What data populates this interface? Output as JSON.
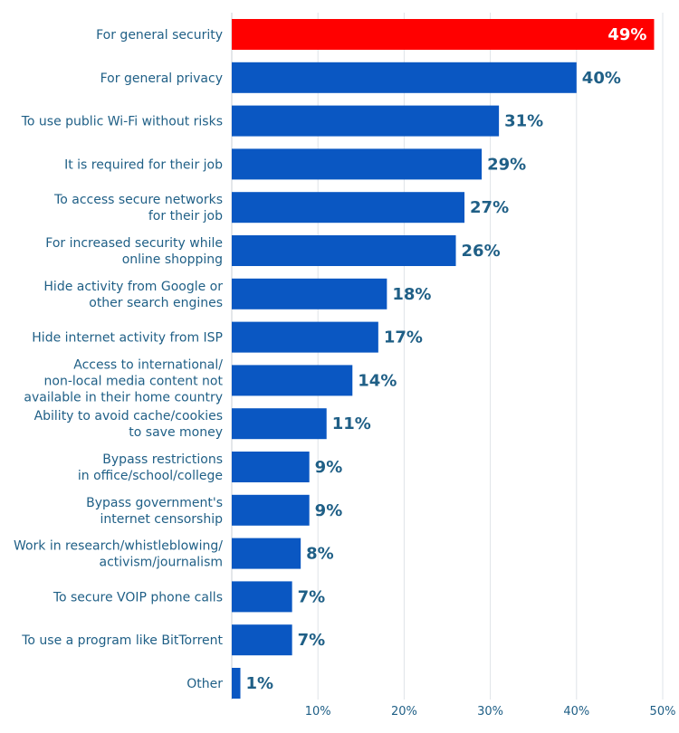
{
  "colors": {
    "bar": "#0a57c2",
    "highlight": "#ff0000",
    "text": "#1f5f86",
    "grid": "#dfe3e8"
  },
  "chart_data": {
    "type": "bar",
    "orientation": "horizontal",
    "title": "",
    "xlabel": "",
    "ylabel": "",
    "xlim": [
      0,
      50
    ],
    "grid": true,
    "ticks": [
      {
        "value": 10,
        "label": "10%"
      },
      {
        "value": 20,
        "label": "20%"
      },
      {
        "value": 30,
        "label": "30%"
      },
      {
        "value": 40,
        "label": "40%"
      },
      {
        "value": 50,
        "label": "50%"
      }
    ],
    "highlighted_index": 0,
    "categories": [
      [
        "For general security"
      ],
      [
        "For general privacy"
      ],
      [
        "To use public Wi-Fi without risks"
      ],
      [
        "It is required for their job"
      ],
      [
        "To access secure networks",
        "for their job"
      ],
      [
        "For increased security while",
        "online shopping"
      ],
      [
        "Hide activity from Google or",
        "other search engines"
      ],
      [
        "Hide internet activity from ISP"
      ],
      [
        "Access to international/",
        "non-local media content not",
        "available in their home country"
      ],
      [
        "Ability to avoid cache/cookies",
        "to save money"
      ],
      [
        "Bypass restrictions",
        "in office/school/college"
      ],
      [
        "Bypass government's",
        "internet censorship"
      ],
      [
        "Work in research/whistleblowing/",
        "activism/journalism"
      ],
      [
        "To secure VOIP phone calls"
      ],
      [
        "To use a program like BitTorrent"
      ],
      [
        "Other"
      ]
    ],
    "values": [
      49,
      40,
      31,
      29,
      27,
      26,
      18,
      17,
      14,
      11,
      9,
      9,
      8,
      7,
      7,
      1
    ],
    "value_labels": [
      "49%",
      "40%",
      "31%",
      "29%",
      "27%",
      "26%",
      "18%",
      "17%",
      "14%",
      "11%",
      "9%",
      "9%",
      "8%",
      "7%",
      "7%",
      "1%"
    ]
  }
}
